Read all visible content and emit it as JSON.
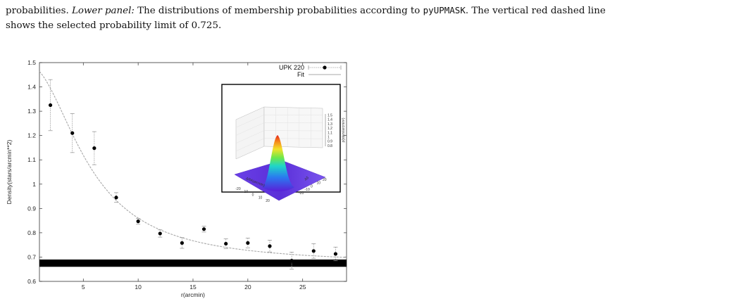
{
  "caption": {
    "line1_pre": "probabilities. ",
    "lower_panel_label": "Lower panel:",
    "line1_mid": " The distributions of membership probabilities according to ",
    "tool_name": "pyUPMASK",
    "line1_post": ". The vertical red dashed line",
    "line2": "shows the selected probability limit of 0.725."
  },
  "chart_data": {
    "type": "scatter",
    "title": "",
    "xlabel": "r(arcmin)",
    "ylabel": "Density(stars/arcmin**2)",
    "xlim": [
      1,
      29
    ],
    "ylim": [
      0.6,
      1.5
    ],
    "xticks": [
      "5",
      "10",
      "15",
      "20",
      "25"
    ],
    "yticks": [
      "0.6",
      "0.7",
      "0.8",
      "0.9",
      "1",
      "1.1",
      "1.2",
      "1.3",
      "1.4",
      "1.5"
    ],
    "legend_position": "top-right",
    "series": [
      {
        "name": "UPK 220",
        "style": "points-with-errorbars",
        "x": [
          2,
          4,
          6,
          8,
          10,
          12,
          14,
          16,
          18,
          20,
          22,
          24,
          26,
          28
        ],
        "y": [
          1.325,
          1.21,
          1.148,
          0.945,
          0.847,
          0.797,
          0.758,
          0.815,
          0.755,
          0.758,
          0.745,
          0.685,
          0.725,
          0.713
        ],
        "err": [
          0.105,
          0.08,
          0.068,
          0.02,
          0.012,
          0.015,
          0.022,
          0.012,
          0.02,
          0.02,
          0.024,
          0.035,
          0.03,
          0.028
        ]
      },
      {
        "name": "Fit",
        "style": "line",
        "model": "king",
        "background": 0.67,
        "peak": 0.82,
        "core_radius": 5.5
      }
    ],
    "background_band": {
      "y_min": 0.66,
      "y_max": 0.69,
      "color": "#000000"
    },
    "inset": {
      "type": "3d-surface",
      "axis_ticks": [
        "-20",
        "-10",
        "0",
        "10",
        "20"
      ],
      "z_ticks": [
        "1.5",
        "1.4",
        "1.3",
        "1.2",
        "1.1",
        "1",
        "0.9",
        "0.8"
      ],
      "x_axis_label": "ΔRA(arcmin)",
      "y_axis_label": "Δδ",
      "z_axis_label": "ρ(stars/arcmin²)",
      "colormap": "rainbow"
    },
    "colors": {
      "data": "#000000",
      "fit": "#a8a8a8",
      "errorbar": "#9a9a9a",
      "band": "#000000"
    }
  }
}
